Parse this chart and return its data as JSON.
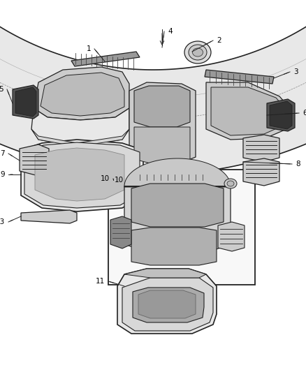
{
  "bg_color": "#ffffff",
  "fig_width": 4.38,
  "fig_height": 5.33,
  "dpi": 100,
  "line_color": "#222222",
  "fill_light": "#e8e8e8",
  "fill_mid": "#cccccc",
  "fill_dark": "#999999",
  "fill_darkest": "#555555"
}
